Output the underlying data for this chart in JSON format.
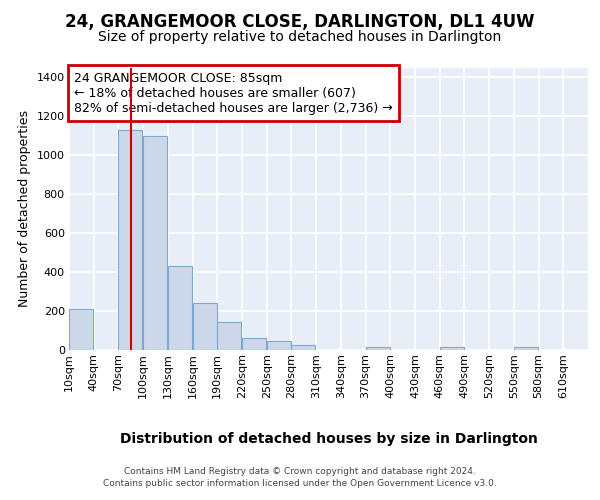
{
  "title": "24, GRANGEMOOR CLOSE, DARLINGTON, DL1 4UW",
  "subtitle": "Size of property relative to detached houses in Darlington",
  "xlabel": "Distribution of detached houses by size in Darlington",
  "ylabel": "Number of detached properties",
  "footer_line1": "Contains HM Land Registry data © Crown copyright and database right 2024.",
  "footer_line2": "Contains public sector information licensed under the Open Government Licence v3.0.",
  "bin_left_edges": [
    10,
    40,
    70,
    100,
    130,
    160,
    190,
    220,
    250,
    280,
    310,
    340,
    370,
    400,
    430,
    460,
    490,
    520,
    550,
    580
  ],
  "bar_heights": [
    210,
    0,
    1130,
    1100,
    430,
    240,
    145,
    60,
    45,
    25,
    0,
    0,
    15,
    0,
    0,
    15,
    0,
    0,
    13,
    0
  ],
  "bar_color": "#ccd8ea",
  "bar_edge_color": "#7aaad4",
  "property_sqm": 85,
  "red_line_color": "#cc0000",
  "annotation_line1": "24 GRANGEMOOR CLOSE: 85sqm",
  "annotation_line2": "← 18% of detached houses are smaller (607)",
  "annotation_line3": "82% of semi-detached houses are larger (2,736) →",
  "annotation_box_edgecolor": "#cc0000",
  "ylim": [
    0,
    1450
  ],
  "yticks": [
    0,
    200,
    400,
    600,
    800,
    1000,
    1200,
    1400
  ],
  "xtick_values": [
    10,
    40,
    70,
    100,
    130,
    160,
    190,
    220,
    250,
    280,
    310,
    340,
    370,
    400,
    430,
    460,
    490,
    520,
    550,
    580,
    610
  ],
  "xtick_labels": [
    "10sqm",
    "40sqm",
    "70sqm",
    "100sqm",
    "130sqm",
    "160sqm",
    "190sqm",
    "220sqm",
    "250sqm",
    "280sqm",
    "310sqm",
    "340sqm",
    "370sqm",
    "400sqm",
    "430sqm",
    "460sqm",
    "490sqm",
    "520sqm",
    "550sqm",
    "580sqm",
    "610sqm"
  ],
  "background_color": "#e8eef8",
  "grid_color": "#ffffff",
  "title_fontsize": 12,
  "subtitle_fontsize": 10,
  "ylabel_fontsize": 9,
  "xlabel_fontsize": 10,
  "tick_fontsize": 8,
  "footer_fontsize": 6.5,
  "annotation_fontsize": 9
}
